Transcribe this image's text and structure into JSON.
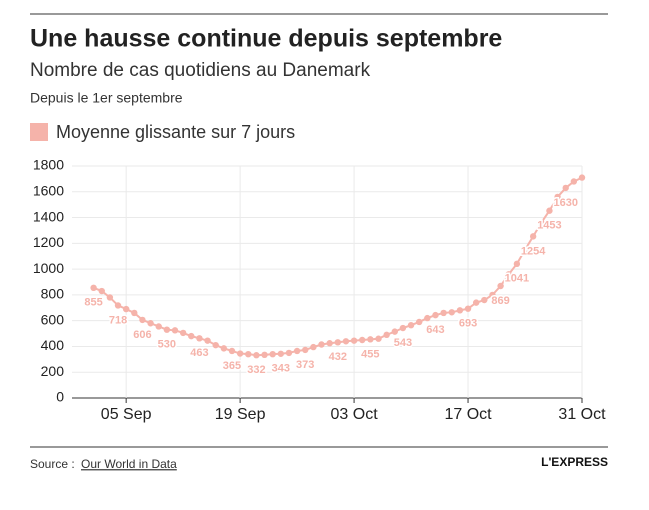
{
  "header": {
    "title": "Une hausse continue depuis septembre",
    "subtitle": "Nombre de cas quotidiens au Danemark",
    "note": "Depuis le 1er septembre"
  },
  "chart_data": {
    "type": "line",
    "categories": [
      "01 Sep",
      "02 Sep",
      "03 Sep",
      "04 Sep",
      "05 Sep",
      "06 Sep",
      "07 Sep",
      "08 Sep",
      "09 Sep",
      "10 Sep",
      "11 Sep",
      "12 Sep",
      "13 Sep",
      "14 Sep",
      "15 Sep",
      "16 Sep",
      "17 Sep",
      "18 Sep",
      "19 Sep",
      "20 Sep",
      "21 Sep",
      "22 Sep",
      "23 Sep",
      "24 Sep",
      "25 Sep",
      "26 Sep",
      "27 Sep",
      "28 Sep",
      "29 Sep",
      "30 Sep",
      "01 Oct",
      "02 Oct",
      "03 Oct",
      "04 Oct",
      "05 Oct",
      "06 Oct",
      "07 Oct",
      "08 Oct",
      "09 Oct",
      "10 Oct",
      "11 Oct",
      "12 Oct",
      "13 Oct",
      "14 Oct",
      "15 Oct",
      "16 Oct",
      "17 Oct",
      "18 Oct",
      "19 Oct",
      "20 Oct",
      "21 Oct",
      "22 Oct",
      "23 Oct",
      "24 Oct",
      "25 Oct",
      "26 Oct",
      "27 Oct",
      "28 Oct",
      "29 Oct",
      "30 Oct",
      "31 Oct"
    ],
    "series": [
      {
        "name": "Moyenne glissante sur 7 jours",
        "color": "#f5b3aa",
        "values": [
          855,
          830,
          780,
          718,
          690,
          660,
          606,
          580,
          555,
          530,
          525,
          505,
          480,
          463,
          445,
          410,
          385,
          365,
          345,
          340,
          332,
          335,
          340,
          343,
          350,
          365,
          373,
          395,
          415,
          425,
          432,
          440,
          445,
          450,
          455,
          460,
          490,
          515,
          543,
          565,
          590,
          620,
          643,
          660,
          665,
          680,
          693,
          740,
          760,
          800,
          869,
          960,
          1041,
          1150,
          1254,
          1360,
          1453,
          1560,
          1630,
          1680,
          1710
        ],
        "value_labels": [
          "855",
          null,
          null,
          "718",
          null,
          null,
          "606",
          null,
          null,
          "530",
          null,
          null,
          null,
          "463",
          null,
          null,
          null,
          "365",
          null,
          null,
          "332",
          null,
          null,
          "343",
          null,
          null,
          "373",
          null,
          null,
          null,
          "432",
          null,
          null,
          null,
          "455",
          null,
          null,
          null,
          "543",
          null,
          null,
          null,
          "643",
          null,
          null,
          null,
          "693",
          null,
          null,
          null,
          "869",
          null,
          "1041",
          null,
          "1254",
          null,
          "1453",
          null,
          "1630",
          null,
          null
        ]
      }
    ],
    "xticks": [
      "05 Sep",
      "19 Sep",
      "03 Oct",
      "17 Oct",
      "31 Oct"
    ],
    "ylim": [
      0,
      1800
    ],
    "yticks": [
      0,
      200,
      400,
      600,
      800,
      1000,
      1200,
      1400,
      1600,
      1800
    ],
    "grid": true
  },
  "footer": {
    "source_label": "Source :",
    "source_name": "Our World in Data",
    "logo": "L'EXPRESS"
  }
}
